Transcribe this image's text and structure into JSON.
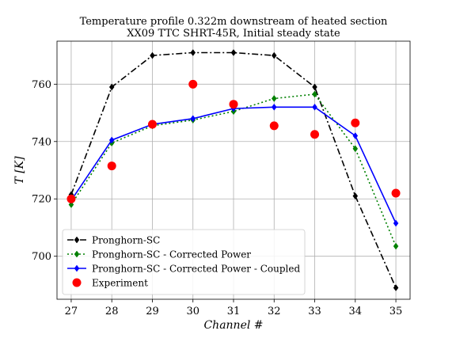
{
  "chart_data": {
    "type": "line",
    "title": "Temperature profile 0.322m downstream of heated section",
    "subtitle": "XX09 TTC SHRT-45R, Initial steady state",
    "xlabel": "Channel #",
    "ylabel": "T [K]",
    "xlim": [
      26.65,
      35.35
    ],
    "ylim": [
      685,
      775
    ],
    "x_ticks": [
      27,
      28,
      29,
      30,
      31,
      32,
      33,
      34,
      35
    ],
    "y_ticks": [
      700,
      720,
      740,
      760
    ],
    "grid": true,
    "legend_position": "lower-left",
    "series": [
      {
        "name": "Pronghorn-SC",
        "color": "#000000",
        "line_style": "dashdot",
        "marker": "diamond",
        "x": [
          27,
          28,
          29,
          30,
          31,
          32,
          33,
          34,
          35
        ],
        "y": [
          721.5,
          759,
          770,
          771,
          771,
          770,
          759,
          721,
          689
        ]
      },
      {
        "name": "Pronghorn-SC - Corrected Power",
        "color": "#008000",
        "line_style": "dotted",
        "marker": "diamond",
        "x": [
          27,
          28,
          29,
          30,
          31,
          32,
          33,
          34,
          35
        ],
        "y": [
          718,
          739.5,
          745.5,
          747.5,
          750.5,
          755,
          756.5,
          737.5,
          703.5
        ]
      },
      {
        "name": "Pronghorn-SC - Corrected Power - Coupled",
        "color": "#0000ff",
        "line_style": "solid",
        "marker": "diamond",
        "x": [
          27,
          28,
          29,
          30,
          31,
          32,
          33,
          34,
          35
        ],
        "y": [
          719.5,
          740.5,
          746,
          748,
          751.5,
          752,
          752,
          742,
          711.5
        ]
      },
      {
        "name": "Experiment",
        "color": "#ff0000",
        "line_style": "none",
        "marker": "circle",
        "x": [
          27,
          28,
          29,
          30,
          31,
          32,
          33,
          34,
          35
        ],
        "y": [
          720,
          731.5,
          746,
          760,
          753,
          745.5,
          742.5,
          746.5,
          722
        ]
      }
    ]
  }
}
